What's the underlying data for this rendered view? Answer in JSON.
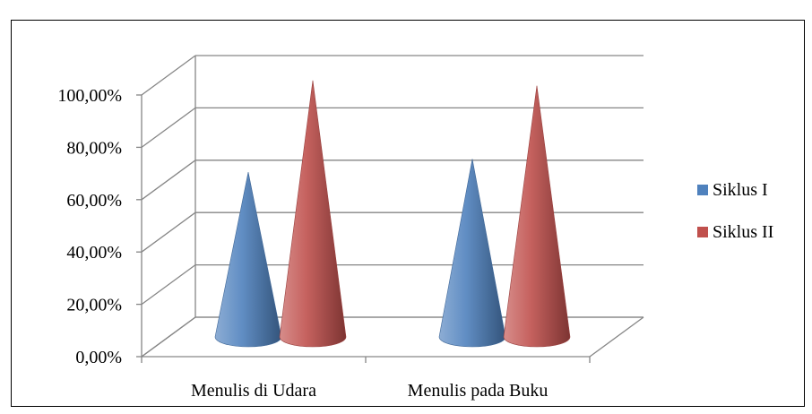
{
  "chart_data": {
    "type": "bar",
    "categories": [
      "Menulis di Udara",
      "Menulis pada Buku"
    ],
    "series": [
      {
        "name": "Siklus I",
        "values": [
          63.0,
          68.0
        ],
        "color": "#4F81BD"
      },
      {
        "name": "Siklus II",
        "values": [
          98.0,
          96.0
        ],
        "color": "#C0504D"
      }
    ],
    "ylim": [
      0,
      100
    ],
    "yticks": [
      0,
      20,
      40,
      60,
      80,
      100
    ],
    "ytick_labels": [
      "0,00%",
      "20,00%",
      "40,00%",
      "60,00%",
      "80,00%",
      "100,00%"
    ],
    "grid": true,
    "legend": "right",
    "mark_shape": "cone"
  }
}
